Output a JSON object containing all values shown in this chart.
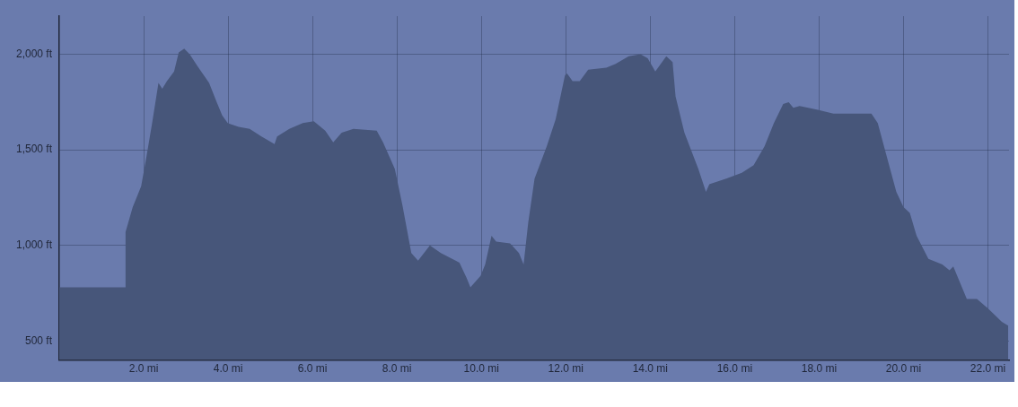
{
  "chart_data": {
    "type": "area",
    "x": [
      0,
      1.57,
      1.57,
      1.74,
      1.94,
      2.07,
      2.2,
      2.35,
      2.44,
      2.55,
      2.72,
      2.83,
      2.96,
      3.09,
      3.27,
      3.55,
      3.73,
      3.86,
      3.99,
      4.25,
      4.51,
      4.79,
      5.1,
      5.16,
      5.45,
      5.77,
      6.03,
      6.3,
      6.49,
      6.69,
      6.97,
      7.52,
      7.67,
      7.95,
      8.13,
      8.34,
      8.5,
      8.78,
      9.04,
      9.48,
      9.65,
      9.74,
      9.98,
      10.09,
      10.24,
      10.35,
      10.68,
      10.89,
      11.0,
      11.11,
      11.26,
      11.55,
      11.76,
      11.98,
      12.03,
      12.16,
      12.33,
      12.53,
      12.96,
      13.18,
      13.49,
      13.77,
      13.94,
      14.12,
      14.38,
      14.53,
      14.6,
      14.81,
      15.14,
      15.32,
      15.4,
      15.8,
      16.17,
      16.45,
      16.71,
      16.93,
      17.15,
      17.28,
      17.39,
      17.54,
      17.97,
      18.34,
      18.85,
      19.24,
      19.39,
      19.61,
      19.83,
      20.0,
      20.15,
      20.31,
      20.59,
      20.92,
      21.09,
      21.18,
      21.5,
      21.74,
      22.0,
      22.33,
      22.48
    ],
    "series": [
      {
        "color": "#47567a",
        "values": [
          780,
          780,
          1070,
          1200,
          1310,
          1470,
          1640,
          1850,
          1820,
          1860,
          1910,
          2010,
          2030,
          2000,
          1940,
          1850,
          1750,
          1680,
          1640,
          1620,
          1610,
          1570,
          1530,
          1570,
          1610,
          1640,
          1650,
          1600,
          1540,
          1590,
          1610,
          1600,
          1540,
          1400,
          1210,
          960,
          920,
          1000,
          960,
          910,
          830,
          780,
          840,
          900,
          1050,
          1020,
          1010,
          960,
          900,
          1120,
          1350,
          1520,
          1660,
          1890,
          1900,
          1860,
          1860,
          1920,
          1930,
          1950,
          1990,
          2000,
          1980,
          1910,
          1990,
          1960,
          1780,
          1590,
          1400,
          1280,
          1320,
          1350,
          1380,
          1420,
          1520,
          1640,
          1740,
          1750,
          1720,
          1730,
          1710,
          1690,
          1690,
          1690,
          1640,
          1460,
          1280,
          1200,
          1170,
          1050,
          930,
          900,
          870,
          890,
          720,
          720,
          670,
          600,
          580
        ]
      }
    ],
    "xlim": [
      0,
      22.5
    ],
    "xticks": [
      {
        "value": 2,
        "label": "2.0 mi"
      },
      {
        "value": 4,
        "label": "4.0 mi"
      },
      {
        "value": 6,
        "label": "6.0 mi"
      },
      {
        "value": 8,
        "label": "8.0 mi"
      },
      {
        "value": 10,
        "label": "10.0 mi"
      },
      {
        "value": 12,
        "label": "12.0 mi"
      },
      {
        "value": 14,
        "label": "14.0 mi"
      },
      {
        "value": 16,
        "label": "16.0 mi"
      },
      {
        "value": 18,
        "label": "18.0 mi"
      },
      {
        "value": 20,
        "label": "20.0 mi"
      },
      {
        "value": 22,
        "label": "22.0 mi"
      }
    ],
    "ylim": [
      400,
      2200
    ],
    "yticks": [
      {
        "value": 500,
        "label": "500 ft"
      },
      {
        "value": 1000,
        "label": "1,000 ft"
      },
      {
        "value": 1500,
        "label": "1,500 ft"
      },
      {
        "value": 2000,
        "label": "2,000 ft"
      }
    ],
    "grid": true,
    "marker": "none"
  }
}
